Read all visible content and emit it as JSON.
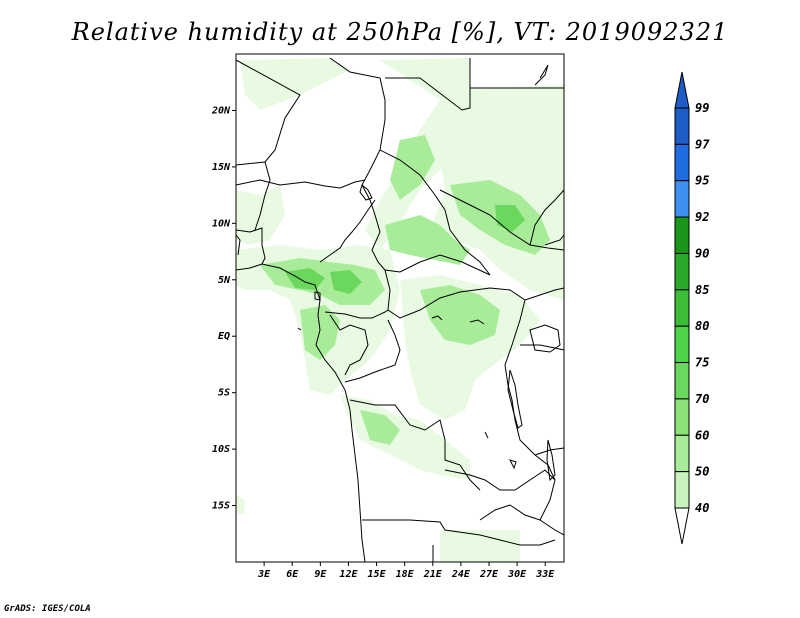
{
  "title": "Relative humidity at 250hPa [%], VT: 2019092321",
  "credit": "GrADS: IGES/COLA",
  "colors": {
    "rh40": "#e8fbe2",
    "rh50": "#c8f3bd",
    "rh60": "#a8ec99",
    "rh70": "#8ae276",
    "rh75": "#6ad85c",
    "rh80": "#4ed348",
    "rh85": "#3bbd38",
    "rh90": "#2aa82a",
    "rh92": "#1a961a",
    "rh95": "#3f8ff0",
    "rh97": "#1f6de0",
    "rh99": "#1e5cc8",
    "border": "#000000"
  },
  "map": {
    "lon_labels": [
      "3E",
      "6E",
      "9E",
      "12E",
      "15E",
      "18E",
      "21E",
      "24E",
      "27E",
      "30E",
      "33E"
    ],
    "lat_labels": [
      "20N",
      "15N",
      "10N",
      "5N",
      "EQ",
      "5S",
      "10S",
      "15S"
    ],
    "lon_range": [
      0,
      35
    ],
    "lat_range": [
      -20,
      25
    ]
  },
  "colorbar": {
    "labels": [
      "99",
      "97",
      "95",
      "92",
      "90",
      "85",
      "80",
      "75",
      "70",
      "60",
      "50",
      "40"
    ]
  }
}
